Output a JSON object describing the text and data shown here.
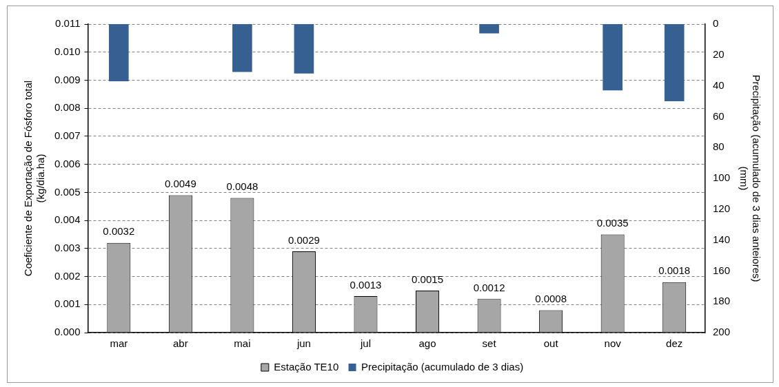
{
  "chart_data": {
    "type": "bar",
    "ylabel": "Coeficiente de Exportação de Fósforo total\n(kg/dia.ha)",
    "y2label": "Precipitação (acumulado de 3 dias anteiores)\n(mm)",
    "categories": [
      "mar",
      "abr",
      "mai",
      "jun",
      "jul",
      "ago",
      "set",
      "out",
      "nov",
      "dez"
    ],
    "series": [
      {
        "name": "Estação TE10",
        "color": "#a6a6a6",
        "values": [
          0.0032,
          0.0049,
          0.0048,
          0.0029,
          0.0013,
          0.0015,
          0.0012,
          0.0008,
          0.0035,
          0.0018
        ],
        "value_labels": [
          "0.0032",
          "0.0049",
          "0.0048",
          "0.0029",
          "0.0013",
          "0.0015",
          "0.0012",
          "0.0008",
          "0.0035",
          "0.0018"
        ]
      },
      {
        "name": "Precipitação (acumulado de 3 dias)",
        "color": "#366092",
        "axis": "y2",
        "values": [
          37,
          null,
          31,
          32,
          null,
          null,
          6,
          null,
          43,
          50
        ]
      }
    ],
    "ylim": [
      0,
      0.011
    ],
    "yticks": [
      {
        "value": 0,
        "label": "0.000"
      },
      {
        "value": 0.001,
        "label": "0.001"
      },
      {
        "value": 0.002,
        "label": "0.002"
      },
      {
        "value": 0.003,
        "label": "0.003"
      },
      {
        "value": 0.004,
        "label": "0.004"
      },
      {
        "value": 0.005,
        "label": "0.005"
      },
      {
        "value": 0.006,
        "label": "0.006"
      },
      {
        "value": 0.007,
        "label": "0.007"
      },
      {
        "value": 0.008,
        "label": "0.008"
      },
      {
        "value": 0.009,
        "label": "0.009"
      },
      {
        "value": 0.01,
        "label": "0.010"
      },
      {
        "value": 0.011,
        "label": "0.011"
      }
    ],
    "y2lim": [
      200,
      0
    ],
    "y2ticks": [
      0,
      20,
      40,
      60,
      80,
      100,
      120,
      140,
      160,
      180,
      200
    ],
    "grid": "y",
    "legend": "bottom"
  }
}
